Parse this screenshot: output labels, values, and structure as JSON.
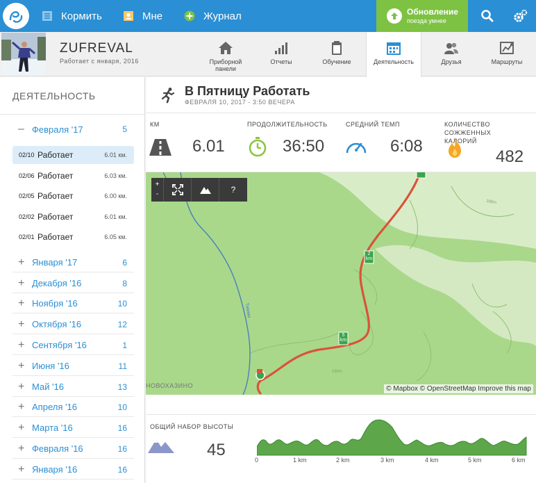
{
  "topbar": {
    "nav": [
      {
        "label": "Кормить",
        "icon": "feed-icon"
      },
      {
        "label": "Мне",
        "icon": "user-icon"
      },
      {
        "label": "Журнал",
        "icon": "plus-icon"
      }
    ],
    "update": {
      "title": "Обновление",
      "subtitle": "поезда умнее"
    },
    "icons": [
      "search-icon",
      "gear-icon"
    ],
    "colors": {
      "bar": "#2a8fd4",
      "update": "#7dc242"
    }
  },
  "profile": {
    "username": "ZUFREVAL",
    "since": "Работает с января, 2016",
    "tabs": [
      {
        "label": "Приборной панели",
        "icon": "home-icon"
      },
      {
        "label": "Отчеты",
        "icon": "bars-icon"
      },
      {
        "label": "Обучение",
        "icon": "clipboard-icon"
      },
      {
        "label": "Деятельность",
        "icon": "calendar-icon",
        "active": true
      },
      {
        "label": "Друзья",
        "icon": "friends-icon"
      },
      {
        "label": "Маршруты",
        "icon": "routes-icon"
      }
    ]
  },
  "sidebar": {
    "title": "ДЕЯТЕЛЬНОСТЬ",
    "open_month": {
      "label": "Февраля '17",
      "count": "5"
    },
    "activities": [
      {
        "date": "02/10",
        "name": "Работает",
        "km": "6.01 км.",
        "selected": true
      },
      {
        "date": "02/06",
        "name": "Работает",
        "km": "6.03 км."
      },
      {
        "date": "02/05",
        "name": "Работает",
        "km": "6.00 км."
      },
      {
        "date": "02/02",
        "name": "Работает",
        "km": "6.01 км."
      },
      {
        "date": "02/01",
        "name": "Работает",
        "km": "6.05 км."
      }
    ],
    "months": [
      {
        "label": "Января '17",
        "count": "6"
      },
      {
        "label": "Декабря '16",
        "count": "8"
      },
      {
        "label": "Ноября '16",
        "count": "10"
      },
      {
        "label": "Октября '16",
        "count": "12"
      },
      {
        "label": "Сентября '16",
        "count": "1"
      },
      {
        "label": "Июня '16",
        "count": "11"
      },
      {
        "label": "Май '16",
        "count": "13"
      },
      {
        "label": "Апреля '16",
        "count": "10"
      },
      {
        "label": "Марта '16",
        "count": "16"
      },
      {
        "label": "Февраля '16",
        "count": "16"
      },
      {
        "label": "Января '16",
        "count": "16"
      }
    ]
  },
  "activity": {
    "title": "В Пятницу Работать",
    "date": "ФЕВРАЛЯ 10, 2017 - 3:50 ВЕЧЕРА",
    "stats": {
      "distance": {
        "label": "КМ",
        "value": "6.01"
      },
      "duration": {
        "label": "ПРОДОЛЖИТЕЛЬНОСТЬ",
        "value": "36:50"
      },
      "pace": {
        "label": "СРЕДНИЙ ТЕМП",
        "value": "6:08"
      },
      "calories": {
        "label": "КОЛИЧЕСТВО СОЖЖЕННЫХ КАЛОРИЙ",
        "value": "482"
      }
    }
  },
  "map": {
    "controls": [
      "+",
      "-",
      "fullscreen-icon",
      "terrain-icon",
      "?"
    ],
    "attribution": "© Mapbox © OpenStreetMap Improve this map",
    "labels": {
      "place": "НОВОХАЗИНО",
      "river": "Тимми",
      "km2": "2\nkm",
      "km5": "5\nkm",
      "contour1": "160m",
      "contour2": "180m"
    }
  },
  "elevation": {
    "label": "ОБЩИЙ НАБОР ВЫСОТЫ",
    "value": "45",
    "ticks": [
      "0",
      "1 km",
      "2 km",
      "3 km",
      "4 km",
      "5 km",
      "6 km"
    ]
  }
}
